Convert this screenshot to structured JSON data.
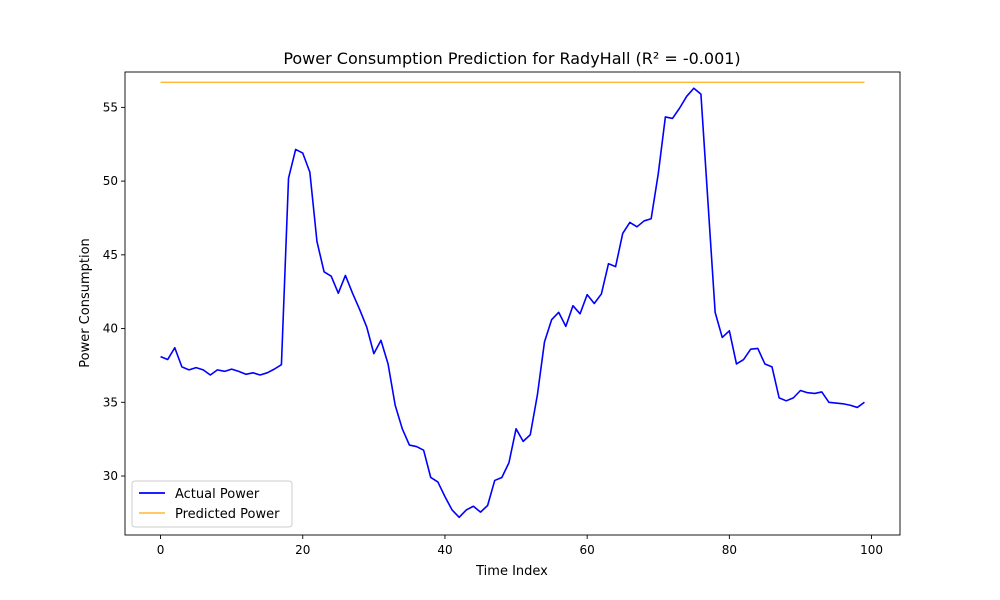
{
  "chart_data": {
    "type": "line",
    "title": "Power Consumption Prediction for RadyHall (R² = -0.001)",
    "xlabel": "Time Index",
    "ylabel": "Power Consumption",
    "xlim": [
      -5,
      104
    ],
    "ylim": [
      26,
      57.4
    ],
    "xticks": [
      0,
      20,
      40,
      60,
      80,
      100
    ],
    "yticks": [
      30,
      35,
      40,
      45,
      50,
      55
    ],
    "grid": false,
    "legend_position": "lower-left",
    "series": [
      {
        "name": "Actual Power",
        "color": "#0000ff",
        "x": [
          0,
          1,
          2,
          3,
          4,
          5,
          6,
          7,
          8,
          9,
          10,
          11,
          12,
          13,
          14,
          15,
          16,
          17,
          18,
          19,
          20,
          21,
          22,
          23,
          24,
          25,
          26,
          27,
          28,
          29,
          30,
          31,
          32,
          33,
          34,
          35,
          36,
          37,
          38,
          39,
          40,
          41,
          42,
          43,
          44,
          45,
          46,
          47,
          48,
          49,
          50,
          51,
          52,
          53,
          54,
          55,
          56,
          57,
          58,
          59,
          60,
          61,
          62,
          63,
          64,
          65,
          66,
          67,
          68,
          69,
          70,
          71,
          72,
          73,
          74,
          75,
          76,
          77,
          78,
          79,
          80,
          81,
          82,
          83,
          84,
          85,
          86,
          87,
          88,
          89,
          90,
          91,
          92,
          93,
          94,
          95,
          96,
          97,
          98,
          99
        ],
        "values": [
          38.1,
          37.9,
          38.7,
          37.4,
          37.2,
          37.35,
          37.2,
          36.85,
          37.2,
          37.1,
          37.25,
          37.1,
          36.9,
          37.0,
          36.85,
          37.0,
          37.25,
          37.55,
          50.2,
          52.15,
          51.9,
          50.6,
          45.9,
          43.85,
          43.55,
          42.4,
          43.6,
          42.4,
          41.3,
          40.1,
          38.3,
          39.2,
          37.6,
          34.8,
          33.2,
          32.1,
          32.0,
          31.75,
          29.9,
          29.6,
          28.6,
          27.7,
          27.2,
          27.7,
          27.95,
          27.55,
          28.0,
          29.7,
          29.9,
          30.9,
          33.2,
          32.35,
          32.8,
          35.5,
          39.1,
          40.6,
          41.1,
          40.15,
          41.55,
          41.0,
          42.3,
          41.7,
          42.35,
          44.4,
          44.2,
          46.45,
          47.2,
          46.9,
          47.3,
          47.45,
          50.5,
          54.35,
          54.25,
          54.95,
          55.75,
          56.3,
          55.9,
          48.5,
          41.1,
          39.4,
          39.85,
          37.6,
          37.9,
          38.6,
          38.65,
          37.6,
          37.4,
          35.3,
          35.1,
          35.3,
          35.8,
          35.65,
          35.6,
          35.7,
          35.0,
          34.95,
          34.9,
          34.8,
          34.65,
          35.0
        ]
      },
      {
        "name": "Predicted Power",
        "color": "#ffb733",
        "x": [
          0,
          99
        ],
        "values": [
          56.7,
          56.7
        ]
      }
    ]
  }
}
